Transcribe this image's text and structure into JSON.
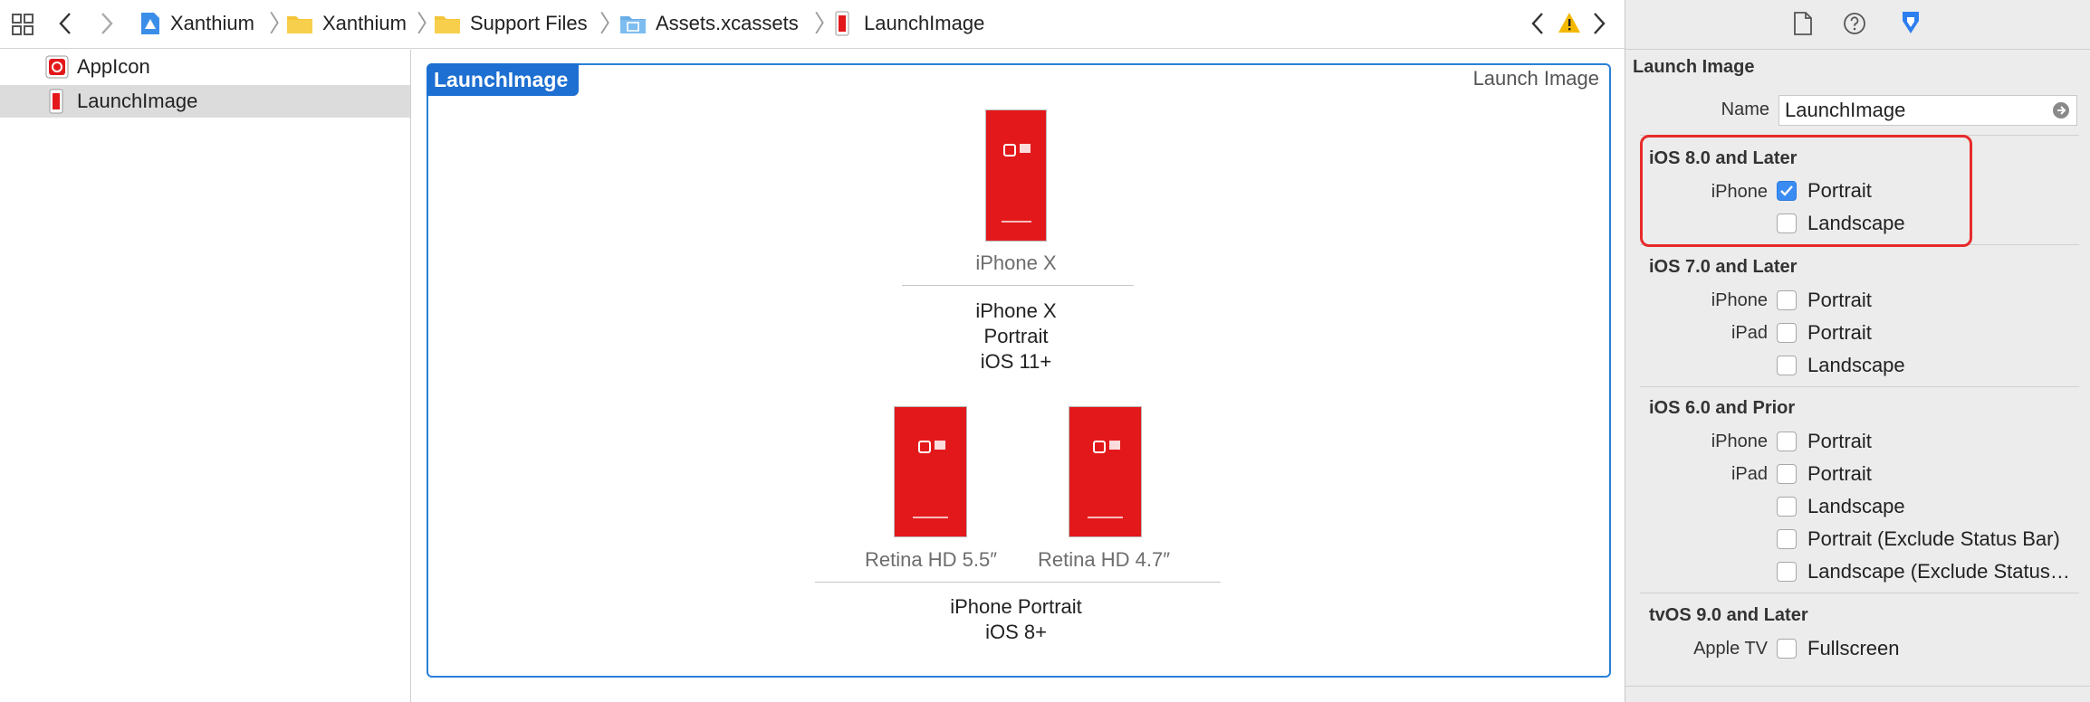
{
  "toolbar": {
    "grid_icon": "grid-icon",
    "breadcrumbs": [
      "Xanthium",
      "Xanthium",
      "Support Files",
      "Assets.xcassets",
      "LaunchImage"
    ]
  },
  "navigator": {
    "items": [
      {
        "label": "AppIcon",
        "selected": false
      },
      {
        "label": "LaunchImage",
        "selected": true
      }
    ]
  },
  "editor": {
    "set_name": "LaunchImage",
    "set_type": "Launch Image",
    "groups": [
      {
        "slots": [
          "iPhone X"
        ],
        "caption": [
          "iPhone X",
          "Portrait",
          "iOS 11+"
        ]
      },
      {
        "slots": [
          "Retina HD 5.5″",
          "Retina HD 4.7″"
        ],
        "caption": [
          "iPhone Portrait",
          "iOS 8+"
        ]
      }
    ]
  },
  "inspector": {
    "title": "Launch Image",
    "name_label": "Name",
    "name_value": "LaunchImage",
    "sections": [
      {
        "title": "iOS 8.0 and Later",
        "rows": [
          {
            "device": "iPhone",
            "option": "Portrait",
            "checked": true
          },
          {
            "device": "",
            "option": "Landscape",
            "checked": false
          }
        ]
      },
      {
        "title": "iOS 7.0 and Later",
        "rows": [
          {
            "device": "iPhone",
            "option": "Portrait",
            "checked": false
          },
          {
            "device": "iPad",
            "option": "Portrait",
            "checked": false
          },
          {
            "device": "",
            "option": "Landscape",
            "checked": false
          }
        ]
      },
      {
        "title": "iOS 6.0 and Prior",
        "rows": [
          {
            "device": "iPhone",
            "option": "Portrait",
            "checked": false
          },
          {
            "device": "iPad",
            "option": "Portrait",
            "checked": false
          },
          {
            "device": "",
            "option": "Landscape",
            "checked": false
          },
          {
            "device": "",
            "option": "Portrait (Exclude Status Bar)",
            "checked": false
          },
          {
            "device": "",
            "option": "Landscape (Exclude Status…",
            "checked": false
          }
        ]
      },
      {
        "title": "tvOS 9.0 and Later",
        "rows": [
          {
            "device": "Apple TV",
            "option": "Fullscreen",
            "checked": false
          }
        ]
      }
    ]
  },
  "colors": {
    "accent": "#1d6fd1",
    "highlight": "#e82a2a",
    "asset_red": "#e3181b",
    "warning": "#f5b800"
  }
}
